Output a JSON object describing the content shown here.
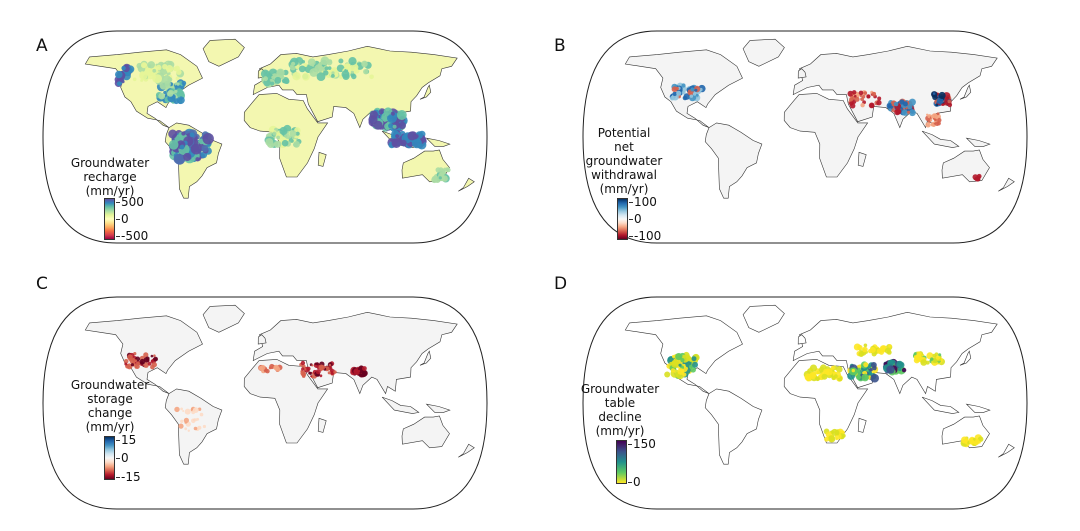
{
  "panels": [
    {
      "label": "A",
      "legend": {
        "title": [
          "Groundwater",
          "recharge",
          "(mm/yr)"
        ],
        "ticks": [
          "500",
          "0",
          "-500"
        ],
        "colormap": [
          "#5e4fa2",
          "#3288bd",
          "#66c2a5",
          "#abdda4",
          "#e6f598",
          "#ffffbf",
          "#fee08b",
          "#fdae61",
          "#f46d43",
          "#d53e4f",
          "#9e0142"
        ]
      }
    },
    {
      "label": "B",
      "legend": {
        "title": [
          "Potential",
          "net",
          "groundwater",
          "withdrawal",
          "(mm/yr)"
        ],
        "ticks": [
          "100",
          "0",
          "-100"
        ],
        "colormap": [
          "#053061",
          "#2166ac",
          "#4393c3",
          "#92c5de",
          "#d1e5f0",
          "#f7f7f7",
          "#fddbc7",
          "#f4a582",
          "#d6604d",
          "#b2182b",
          "#67001f"
        ]
      }
    },
    {
      "label": "C",
      "legend": {
        "title": [
          "Groundwater",
          "storage",
          "change",
          "(mm/yr)"
        ],
        "ticks": [
          "15",
          "0",
          "-15"
        ],
        "colormap": [
          "#053061",
          "#2166ac",
          "#4393c3",
          "#92c5de",
          "#d1e5f0",
          "#f7f7f7",
          "#fddbc7",
          "#f4a582",
          "#d6604d",
          "#b2182b",
          "#67001f"
        ]
      }
    },
    {
      "label": "D",
      "legend": {
        "title": [
          "Groundwater",
          "table",
          "decline",
          "(mm/yr)"
        ],
        "ticks": [
          "150",
          "0"
        ],
        "colormap": [
          "#440154",
          "#3b528b",
          "#21918c",
          "#5ec962",
          "#fde725"
        ]
      }
    }
  ]
}
